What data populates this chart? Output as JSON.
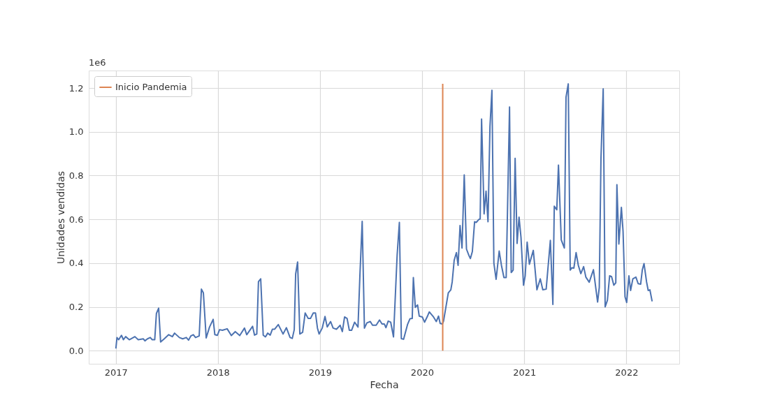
{
  "chart_data": {
    "type": "line",
    "xlabel": "Fecha",
    "ylabel": "Unidades vendidas",
    "annotations": [
      "1e6"
    ],
    "xlim": [
      "2016-09-26",
      "2022-07-09"
    ],
    "xticks": [
      "2017",
      "2018",
      "2019",
      "2020",
      "2021",
      "2022"
    ],
    "ylim": [
      -0.06,
      1.28
    ],
    "yticks": [
      {
        "value": 0,
        "label": "0.0"
      },
      {
        "value": 0.2,
        "label": "0.2"
      },
      {
        "value": 0.4,
        "label": "0.4"
      },
      {
        "value": 0.6,
        "label": "0.6"
      },
      {
        "value": 0.8,
        "label": "0.8"
      },
      {
        "value": 1,
        "label": "1.0"
      },
      {
        "value": 1.2,
        "label": "1.2"
      }
    ],
    "grid": true,
    "legend": "top left",
    "marker": "none",
    "line_style": "solid",
    "series": [
      {
        "color": "#4c72b0",
        "x": [
          "2017-01-01",
          "2017-01-05",
          "2017-01-11",
          "2017-01-21",
          "2017-01-28",
          "2017-02-05",
          "2017-02-18",
          "2017-03-10",
          "2017-03-22",
          "2017-04-09",
          "2017-04-15",
          "2017-04-24",
          "2017-05-04",
          "2017-05-11",
          "2017-05-20",
          "2017-05-26",
          "2017-06-03",
          "2017-06-10",
          "2017-06-23",
          "2017-07-09",
          "2017-07-22",
          "2017-07-30",
          "2017-08-16",
          "2017-08-28",
          "2017-09-10",
          "2017-09-18",
          "2017-09-26",
          "2017-10-05",
          "2017-10-13",
          "2017-10-26",
          "2017-11-03",
          "2017-11-10",
          "2017-11-20",
          "2017-12-02",
          "2017-12-15",
          "2017-12-21",
          "2017-12-30",
          "2018-01-07",
          "2018-01-17",
          "2018-02-03",
          "2018-02-18",
          "2018-03-04",
          "2018-03-20",
          "2018-04-06",
          "2018-04-14",
          "2018-05-05",
          "2018-05-12",
          "2018-05-20",
          "2018-05-26",
          "2018-06-03",
          "2018-06-12",
          "2018-06-20",
          "2018-06-28",
          "2018-07-07",
          "2018-07-15",
          "2018-07-23",
          "2018-08-05",
          "2018-08-22",
          "2018-09-03",
          "2018-09-16",
          "2018-09-24",
          "2018-10-01",
          "2018-10-06",
          "2018-10-13",
          "2018-10-21",
          "2018-10-31",
          "2018-11-09",
          "2018-11-20",
          "2018-11-28",
          "2018-12-08",
          "2018-12-16",
          "2018-12-23",
          "2018-12-29",
          "2019-01-09",
          "2019-01-19",
          "2019-01-27",
          "2019-02-08",
          "2019-02-17",
          "2019-03-01",
          "2019-03-14",
          "2019-03-22",
          "2019-03-30",
          "2019-04-08",
          "2019-04-16",
          "2019-04-24",
          "2019-05-05",
          "2019-05-17",
          "2019-05-24",
          "2019-06-01",
          "2019-06-09",
          "2019-06-18",
          "2019-06-30",
          "2019-07-08",
          "2019-07-21",
          "2019-08-02",
          "2019-08-11",
          "2019-08-19",
          "2019-08-25",
          "2019-09-02",
          "2019-09-11",
          "2019-09-21",
          "2019-10-04",
          "2019-10-12",
          "2019-10-19",
          "2019-10-27",
          "2019-11-10",
          "2019-11-19",
          "2019-11-27",
          "2019-12-01",
          "2019-12-08",
          "2019-12-16",
          "2019-12-22",
          "2020-01-02",
          "2020-01-10",
          "2020-01-20",
          "2020-01-27",
          "2020-02-10",
          "2020-02-21",
          "2020-02-29",
          "2020-03-06",
          "2020-03-14",
          "2020-03-18",
          "2020-04-04",
          "2020-04-13",
          "2020-04-18",
          "2020-04-25",
          "2020-05-03",
          "2020-05-09",
          "2020-05-16",
          "2020-05-23",
          "2020-05-31",
          "2020-06-08",
          "2020-06-17",
          "2020-06-22",
          "2020-06-29",
          "2020-07-07",
          "2020-07-13",
          "2020-07-22",
          "2020-07-27",
          "2020-08-01",
          "2020-08-10",
          "2020-08-17",
          "2020-08-24",
          "2020-08-31",
          "2020-09-07",
          "2020-09-14",
          "2020-09-22",
          "2020-10-03",
          "2020-10-11",
          "2020-10-20",
          "2020-10-28",
          "2020-11-09",
          "2020-11-15",
          "2020-11-22",
          "2020-11-29",
          "2020-12-06",
          "2020-12-13",
          "2020-12-20",
          "2020-12-29",
          "2021-01-04",
          "2021-01-11",
          "2021-01-19",
          "2021-02-02",
          "2021-02-15",
          "2021-02-27",
          "2021-03-08",
          "2021-03-20",
          "2021-04-04",
          "2021-04-13",
          "2021-04-18",
          "2021-04-27",
          "2021-05-03",
          "2021-05-13",
          "2021-05-24",
          "2021-05-30",
          "2021-06-07",
          "2021-06-14",
          "2021-06-20",
          "2021-06-27",
          "2021-07-05",
          "2021-07-13",
          "2021-07-22",
          "2021-08-01",
          "2021-08-09",
          "2021-08-21",
          "2021-09-05",
          "2021-09-20",
          "2021-09-26",
          "2021-10-02",
          "2021-10-10",
          "2021-10-17",
          "2021-10-25",
          "2021-11-02",
          "2021-11-09",
          "2021-11-17",
          "2021-11-24",
          "2021-11-28",
          "2021-12-05",
          "2021-12-14",
          "2021-12-20",
          "2021-12-27",
          "2022-01-02",
          "2022-01-10",
          "2022-01-16",
          "2022-01-24",
          "2022-02-04",
          "2022-02-12",
          "2022-02-21",
          "2022-02-27",
          "2022-03-05",
          "2022-03-14",
          "2022-03-20",
          "2022-03-26",
          "2022-04-03"
        ],
        "values": [
          0.01,
          0.06,
          0.05,
          0.07,
          0.05,
          0.064,
          0.05,
          0.064,
          0.05,
          0.054,
          0.045,
          0.054,
          0.06,
          0.05,
          0.05,
          0.17,
          0.194,
          0.04,
          0.054,
          0.073,
          0.064,
          0.08,
          0.06,
          0.054,
          0.06,
          0.048,
          0.067,
          0.073,
          0.06,
          0.067,
          0.281,
          0.264,
          0.058,
          0.108,
          0.143,
          0.073,
          0.07,
          0.096,
          0.093,
          0.1,
          0.069,
          0.087,
          0.069,
          0.103,
          0.073,
          0.111,
          0.071,
          0.076,
          0.315,
          0.328,
          0.071,
          0.063,
          0.08,
          0.071,
          0.098,
          0.098,
          0.119,
          0.076,
          0.105,
          0.06,
          0.056,
          0.096,
          0.35,
          0.405,
          0.076,
          0.084,
          0.172,
          0.147,
          0.147,
          0.172,
          0.172,
          0.103,
          0.076,
          0.103,
          0.156,
          0.108,
          0.133,
          0.103,
          0.098,
          0.116,
          0.087,
          0.154,
          0.147,
          0.093,
          0.093,
          0.13,
          0.108,
          0.349,
          0.591,
          0.103,
          0.127,
          0.133,
          0.116,
          0.116,
          0.14,
          0.122,
          0.122,
          0.105,
          0.135,
          0.13,
          0.063,
          0.437,
          0.586,
          0.055,
          0.052,
          0.119,
          0.146,
          0.147,
          0.334,
          0.198,
          0.209,
          0.158,
          0.154,
          0.13,
          0.156,
          0.177,
          0.156,
          0.133,
          0.158,
          0.124,
          0.122,
          0.135,
          0.264,
          0.278,
          0.315,
          0.413,
          0.448,
          0.39,
          0.572,
          0.469,
          0.803,
          0.464,
          0.434,
          0.421,
          0.453,
          0.589,
          0.586,
          0.599,
          0.602,
          1.058,
          0.625,
          0.729,
          0.589,
          1.024,
          1.19,
          0.4,
          0.326,
          0.455,
          0.39,
          0.334,
          0.334,
          1.113,
          0.357,
          0.368,
          0.879,
          0.49,
          0.61,
          0.517,
          0.299,
          0.342,
          0.496,
          0.395,
          0.458,
          0.278,
          0.328,
          0.278,
          0.281,
          0.504,
          0.211,
          0.66,
          0.644,
          0.848,
          0.506,
          0.469,
          1.158,
          1.219,
          0.368,
          0.379,
          0.377,
          0.448,
          0.39,
          0.352,
          0.384,
          0.336,
          0.313,
          0.37,
          0.222,
          0.289,
          0.877,
          1.196,
          0.2,
          0.23,
          0.342,
          0.338,
          0.299,
          0.31,
          0.758,
          0.487,
          0.655,
          0.546,
          0.246,
          0.22,
          0.342,
          0.275,
          0.328,
          0.336,
          0.306,
          0.304,
          0.37,
          0.398,
          0.315,
          0.275,
          0.278,
          0.225
        ]
      },
      {
        "name": "Inicio Pandemia",
        "color": "#dd8452",
        "x": [
          "2020-03-15",
          "2020-03-15"
        ],
        "values": [
          0,
          1.219
        ]
      }
    ]
  }
}
